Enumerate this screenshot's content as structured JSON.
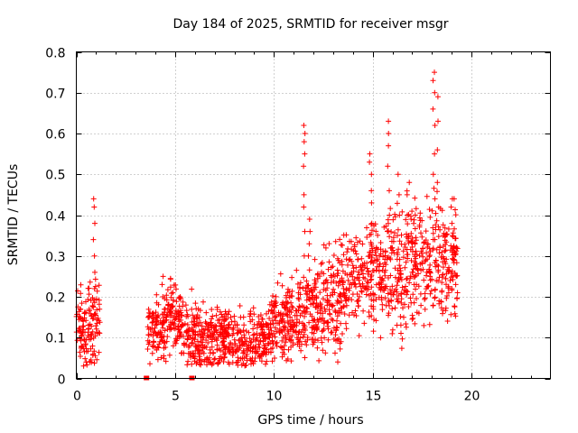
{
  "chart_data": {
    "type": "scatter",
    "title": "Day 184 of 2025, SRMTID for receiver msgr",
    "xlabel": "GPS time / hours",
    "ylabel": "SRMTID / TECUs",
    "xlim": [
      0,
      24
    ],
    "ylim": [
      0,
      0.8
    ],
    "xticks": [
      "0",
      "5",
      "10",
      "15",
      "20"
    ],
    "yticks": [
      "0",
      "0.1",
      "0.2",
      "0.3",
      "0.4",
      "0.5",
      "0.6",
      "0.7",
      "0.8"
    ],
    "grid": true,
    "marker": "+",
    "series_color": "#ff0000",
    "series": [
      {
        "name": "SRMTID",
        "segments": [
          {
            "t_start": 0.0,
            "t_end": 1.2,
            "base": [
              [
                0.0,
                0.16
              ],
              [
                0.3,
                0.12
              ],
              [
                0.6,
                0.11
              ],
              [
                0.9,
                0.14
              ],
              [
                1.2,
                0.15
              ]
            ],
            "spread": 0.05
          },
          {
            "t_start": 3.6,
            "t_end": 6.2,
            "base": [
              [
                3.6,
                0.12
              ],
              [
                4.2,
                0.12
              ],
              [
                4.7,
                0.15
              ],
              [
                5.2,
                0.13
              ],
              [
                5.7,
                0.12
              ],
              [
                6.2,
                0.09
              ]
            ],
            "spread": 0.04
          },
          {
            "t_start": 6.2,
            "t_end": 10.0,
            "base": [
              [
                6.2,
                0.09
              ],
              [
                7.0,
                0.1
              ],
              [
                8.0,
                0.1
              ],
              [
                9.0,
                0.09
              ],
              [
                10.0,
                0.12
              ]
            ],
            "spread": 0.035
          },
          {
            "t_start": 10.0,
            "t_end": 12.0,
            "base": [
              [
                10.0,
                0.12
              ],
              [
                11.0,
                0.14
              ],
              [
                12.0,
                0.17
              ]
            ],
            "spread": 0.05
          },
          {
            "t_start": 12.0,
            "t_end": 15.0,
            "base": [
              [
                12.0,
                0.17
              ],
              [
                13.0,
                0.19
              ],
              [
                14.0,
                0.24
              ],
              [
                15.0,
                0.26
              ]
            ],
            "spread": 0.06
          },
          {
            "t_start": 15.0,
            "t_end": 19.3,
            "base": [
              [
                15.0,
                0.26
              ],
              [
                16.0,
                0.26
              ],
              [
                17.0,
                0.28
              ],
              [
                18.0,
                0.3
              ],
              [
                19.3,
                0.28
              ]
            ],
            "spread": 0.07
          }
        ],
        "spikes": [
          {
            "x": 0.9,
            "y": [
              0.22,
              0.26,
              0.3,
              0.34,
              0.38,
              0.42,
              0.44
            ]
          },
          {
            "x": 4.35,
            "y": [
              0.2,
              0.23,
              0.25
            ]
          },
          {
            "x": 11.55,
            "y": [
              0.3,
              0.36,
              0.42,
              0.45,
              0.52,
              0.55,
              0.58,
              0.6,
              0.62
            ]
          },
          {
            "x": 11.8,
            "y": [
              0.3,
              0.33,
              0.36,
              0.39
            ]
          },
          {
            "x": 14.9,
            "y": [
              0.38,
              0.43,
              0.46,
              0.5,
              0.53,
              0.55
            ]
          },
          {
            "x": 15.8,
            "y": [
              0.4,
              0.46,
              0.52,
              0.57,
              0.6,
              0.63
            ]
          },
          {
            "x": 16.3,
            "y": [
              0.35,
              0.4,
              0.45,
              0.5
            ]
          },
          {
            "x": 16.8,
            "y": [
              0.35,
              0.4,
              0.45,
              0.48
            ]
          },
          {
            "x": 18.1,
            "y": [
              0.44,
              0.5,
              0.55,
              0.62,
              0.66,
              0.7,
              0.73,
              0.75
            ]
          },
          {
            "x": 18.3,
            "y": [
              0.42,
              0.48,
              0.56,
              0.63,
              0.69
            ]
          },
          {
            "x": 19.0,
            "y": [
              0.35,
              0.38,
              0.42,
              0.44
            ]
          }
        ],
        "lows": [
          {
            "x": 3.55,
            "y": 0.0
          },
          {
            "x": 5.85,
            "y": 0.0
          }
        ]
      }
    ]
  }
}
